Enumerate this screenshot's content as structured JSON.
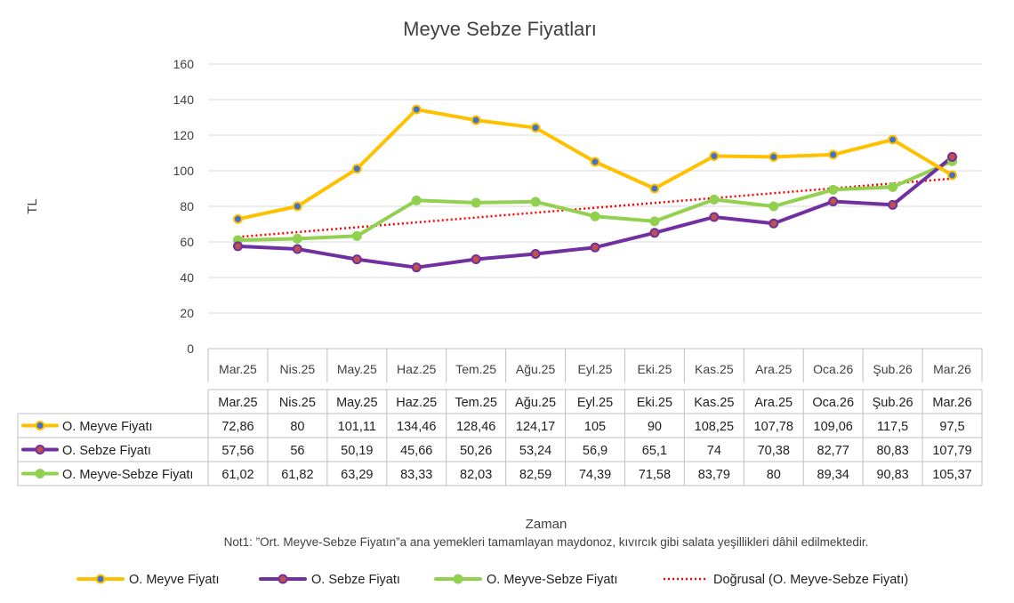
{
  "chart_data": {
    "type": "line",
    "title": "Meyve Sebze Fiyatları",
    "xlabel": "Zaman",
    "ylabel": "TL",
    "ylim": [
      0,
      160
    ],
    "yticks": [
      0,
      20,
      40,
      60,
      80,
      100,
      120,
      140,
      160
    ],
    "grid": true,
    "legend_position": "bottom",
    "categories": [
      "Mar.25",
      "Nis.25",
      "May.25",
      "Haz.25",
      "Tem.25",
      "Ağu.25",
      "Eyl.25",
      "Eki.25",
      "Kas.25",
      "Ara.25",
      "Oca.26",
      "Şub.26",
      "Mar.26"
    ],
    "series": [
      {
        "name": "O. Meyve Fiyatı",
        "color": "#FFC000",
        "marker_color": "#4472C4",
        "values": [
          72.86,
          80,
          101.11,
          134.46,
          128.46,
          124.17,
          105,
          90,
          108.25,
          107.78,
          109.06,
          117.5,
          97.5
        ],
        "labels": [
          "72,86",
          "80",
          "101,11",
          "134,46",
          "128,46",
          "124,17",
          "105",
          "90",
          "108,25",
          "107,78",
          "109,06",
          "117,5",
          "97,5"
        ]
      },
      {
        "name": "O. Sebze Fiyatı",
        "color": "#7030A0",
        "marker_color": "#C0504D",
        "values": [
          57.56,
          56,
          50.19,
          45.66,
          50.26,
          53.24,
          56.9,
          65.1,
          74,
          70.38,
          82.77,
          80.83,
          107.79
        ],
        "labels": [
          "57,56",
          "56",
          "50,19",
          "45,66",
          "50,26",
          "53,24",
          "56,9",
          "65,1",
          "74",
          "70,38",
          "82,77",
          "80,83",
          "107,79"
        ]
      },
      {
        "name": "O. Meyve-Sebze Fiyatı",
        "color": "#92D050",
        "marker_color": "#92D050",
        "values": [
          61.02,
          61.82,
          63.29,
          83.33,
          82.03,
          82.59,
          74.39,
          71.58,
          83.79,
          80,
          89.34,
          90.83,
          105.37
        ],
        "labels": [
          "61,02",
          "61,82",
          "63,29",
          "83,33",
          "82,03",
          "82,59",
          "74,39",
          "71,58",
          "83,79",
          "80",
          "89,34",
          "90,83",
          "105,37"
        ]
      }
    ],
    "trendline": {
      "name": "Doğrusal (O. Meyve-Sebze Fiyatı)",
      "color": "#FF0000",
      "of_series": 2
    },
    "note": "Not1: ”Ort. Meyve-Sebze Fiyatın”a ana yemekleri tamamlayan maydonoz, kıvırcık gibi salata yeşillikleri dâhil edilmektedir."
  }
}
